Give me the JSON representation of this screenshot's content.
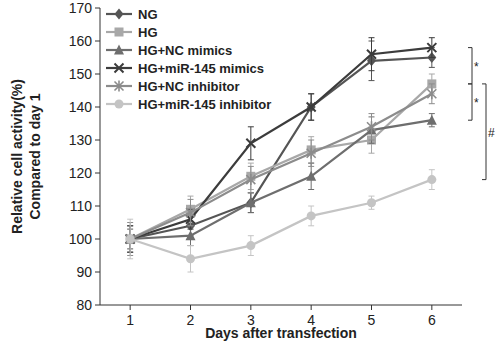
{
  "chart_data": {
    "type": "line",
    "y_label": [
      "Relative cell activity(%)",
      "Compared to day 1"
    ],
    "x_label": "Days after transfection",
    "x": [
      1,
      2,
      3,
      4,
      5,
      6
    ],
    "xlim": [
      0.5,
      6.5
    ],
    "xticks": [
      1,
      2,
      3,
      4,
      5,
      6
    ],
    "ylim": [
      80,
      170
    ],
    "yticks": [
      80,
      90,
      100,
      110,
      120,
      130,
      140,
      150,
      160,
      170
    ],
    "grid": false,
    "legend": "upper left",
    "series": [
      {
        "name": "NG",
        "color": "#555555",
        "marker": "diamond",
        "values": [
          100,
          104,
          111,
          140,
          154,
          155
        ],
        "errors": [
          3,
          3,
          3,
          4,
          6,
          3
        ]
      },
      {
        "name": "HG",
        "color": "#a8a8a8",
        "marker": "square",
        "values": [
          100,
          109,
          119,
          127,
          130,
          147
        ],
        "errors": [
          4,
          4,
          4,
          4,
          4,
          3
        ]
      },
      {
        "name": "HG+NC mimics",
        "color": "#6e6e6e",
        "marker": "triangle",
        "values": [
          100,
          101,
          111,
          119,
          133,
          136
        ],
        "errors": [
          4,
          3,
          3,
          4,
          4,
          2
        ]
      },
      {
        "name": "HG+miR-145 mimics",
        "color": "#3c3c3c",
        "marker": "x",
        "values": [
          100,
          106,
          129,
          140,
          156,
          158
        ],
        "errors": [
          4,
          3,
          5,
          4,
          5,
          3
        ]
      },
      {
        "name": "HG+NC inhibitor",
        "color": "#8c8c8c",
        "marker": "star",
        "values": [
          100,
          108,
          118,
          126,
          134,
          144
        ],
        "errors": [
          5,
          4,
          4,
          4,
          4,
          3
        ]
      },
      {
        "name": "HG+miR-145 inhibitor",
        "color": "#c4c4c4",
        "marker": "circle",
        "values": [
          100,
          94,
          98,
          107,
          111,
          118
        ],
        "errors": [
          6,
          4,
          3,
          3,
          2,
          3
        ]
      }
    ],
    "annotations": [
      {
        "text": "*",
        "from": 158,
        "to": 147
      },
      {
        "text": "*",
        "from": 147,
        "to": 136
      },
      {
        "text": "#",
        "from": 147,
        "to": 118
      }
    ]
  }
}
